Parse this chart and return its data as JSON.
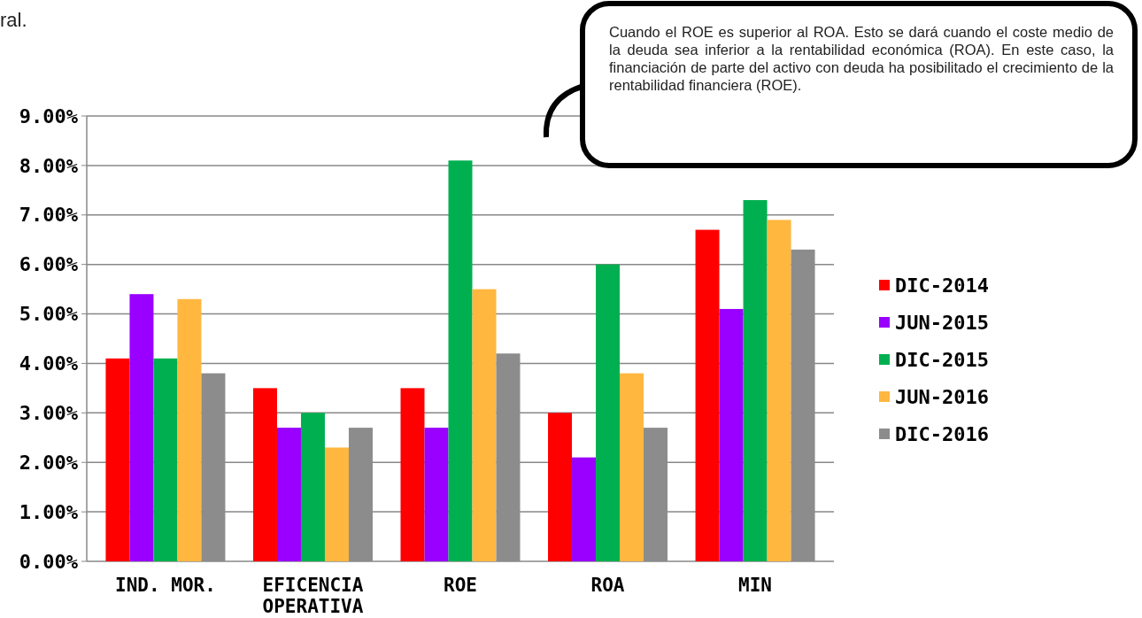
{
  "chart_data": {
    "type": "bar",
    "categories": [
      "IND. MOR.",
      "EFICENCIA OPERATIVA",
      "ROE",
      "ROA",
      "MIN"
    ],
    "series": [
      {
        "name": "DIC-2014",
        "color": "#ff0000",
        "values": [
          4.1,
          3.5,
          3.5,
          3.0,
          6.7
        ]
      },
      {
        "name": "JUN-2015",
        "color": "#9900ff",
        "values": [
          5.4,
          2.7,
          2.7,
          2.1,
          5.1
        ]
      },
      {
        "name": "DIC-2015",
        "color": "#00b050",
        "values": [
          4.1,
          3.0,
          8.1,
          6.0,
          7.3
        ]
      },
      {
        "name": "JUN-2016",
        "color": "#ffb740",
        "values": [
          5.3,
          2.3,
          5.5,
          3.8,
          6.9
        ]
      },
      {
        "name": "DIC-2016",
        "color": "#8c8c8c",
        "values": [
          3.8,
          2.7,
          4.2,
          2.7,
          6.3
        ]
      }
    ],
    "ylim": [
      0,
      9
    ],
    "yticks": [
      {
        "value": 0,
        "label": "0.00%"
      },
      {
        "value": 1,
        "label": "1.00%"
      },
      {
        "value": 2,
        "label": "2.00%"
      },
      {
        "value": 3,
        "label": "3.00%"
      },
      {
        "value": 4,
        "label": "4.00%"
      },
      {
        "value": 5,
        "label": "5.00%"
      },
      {
        "value": 6,
        "label": "6.00%"
      },
      {
        "value": 7,
        "label": "7.00%"
      },
      {
        "value": 8,
        "label": "8.00%"
      },
      {
        "value": 9,
        "label": "9.00%"
      }
    ],
    "grid": "y",
    "legend": "right",
    "annotations": [
      "ral.",
      "Cuando el ROE es superior al ROA. Esto se dará cuando el coste medio de la deuda sea inferior a la rentabilidad económica (ROA). En este caso, la financiación de parte del activo con deuda ha posibilitado el crecimiento de la rentabilidad financiera (ROE)."
    ]
  }
}
